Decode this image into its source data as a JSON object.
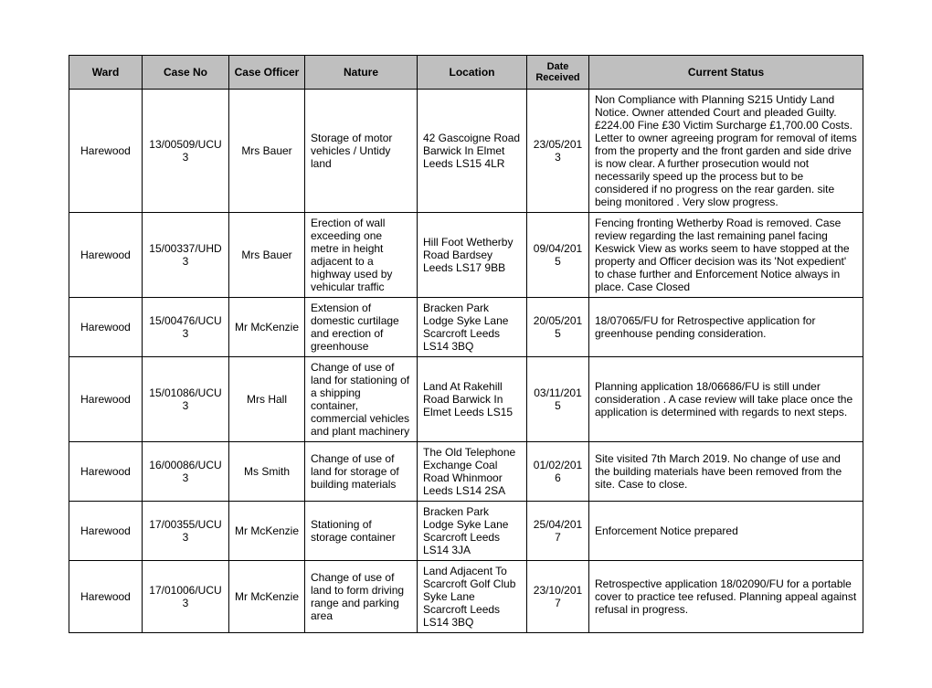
{
  "columns": [
    {
      "key": "ward",
      "label": "Ward",
      "align": "center"
    },
    {
      "key": "caseNo",
      "label": "Case No",
      "align": "center"
    },
    {
      "key": "officer",
      "label": "Case Officer",
      "align": "center"
    },
    {
      "key": "nature",
      "label": "Nature",
      "align": "left"
    },
    {
      "key": "location",
      "label": "Location",
      "align": "left"
    },
    {
      "key": "date",
      "label": "Date Received",
      "align": "center"
    },
    {
      "key": "status",
      "label": "Current Status",
      "align": "left"
    }
  ],
  "rows": [
    {
      "ward": "Harewood",
      "caseNo": "13/00509/UCU3",
      "officer": "Mrs Bauer",
      "nature": "Storage of motor vehicles / Untidy land",
      "location": "42 Gascoigne Road Barwick In Elmet Leeds LS15 4LR",
      "date": "23/05/2013",
      "status": "Non Compliance with Planning S215 Untidy Land Notice. Owner attended Court and pleaded Guilty. £224.00 Fine £30 Victim Surcharge £1,700.00 Costs. Letter to owner agreeing program for removal of items from the property and the front garden and side drive is now clear. A further prosecution would not necessarily speed up the process but to be considered if no progress on the rear garden. site being monitored . Very slow progress."
    },
    {
      "ward": "Harewood",
      "caseNo": "15/00337/UHD3",
      "officer": "Mrs Bauer",
      "nature": "Erection of wall exceeding one metre in height adjacent to a highway used by vehicular traffic",
      "location": "Hill Foot Wetherby Road Bardsey Leeds LS17 9BB",
      "date": "09/04/2015",
      "status": "Fencing fronting Wetherby Road is removed. Case review regarding the last remaining panel facing Keswick View as works seem to have stopped at the property and Officer decision was its 'Not expedient' to chase further and Enforcement Notice always in place. Case Closed"
    },
    {
      "ward": "Harewood",
      "caseNo": "15/00476/UCU3",
      "officer": "Mr McKenzie",
      "nature": "Extension of domestic curtilage and erection of greenhouse",
      "location": "Bracken Park Lodge Syke Lane Scarcroft Leeds LS14 3BQ",
      "date": "20/05/2015",
      "status": "18/07065/FU for Retrospective application for greenhouse pending consideration."
    },
    {
      "ward": "Harewood",
      "caseNo": "15/01086/UCU3",
      "officer": "Mrs Hall",
      "nature": "Change of use of land for stationing of a shipping container, commercial vehicles and plant machinery",
      "location": "Land At Rakehill Road Barwick In Elmet Leeds LS15",
      "date": "03/11/2015",
      "status": "Planning application 18/06686/FU is still under consideration . A case review will take place once the application is determined with regards to next steps."
    },
    {
      "ward": "Harewood",
      "caseNo": "16/00086/UCU3",
      "officer": "Ms Smith",
      "nature": "Change of use of land for storage of building materials",
      "location": "The Old Telephone Exchange Coal Road Whinmoor Leeds LS14 2SA",
      "date": "01/02/2016",
      "status": "Site visited 7th March 2019. No change of use and the building materials have been removed from the site.  Case to close."
    },
    {
      "ward": "Harewood",
      "caseNo": "17/00355/UCU3",
      "officer": "Mr McKenzie",
      "nature": "Stationing of storage container",
      "location": "Bracken Park Lodge Syke Lane Scarcroft Leeds LS14 3JA",
      "date": "25/04/2017",
      "status": "Enforcement Notice prepared"
    },
    {
      "ward": "Harewood",
      "caseNo": "17/01006/UCU3",
      "officer": "Mr McKenzie",
      "nature": "Change of use of land to form driving range and parking area",
      "location": "Land Adjacent To Scarcroft Golf Club Syke Lane Scarcroft Leeds LS14 3BQ",
      "date": "23/10/2017",
      "status": "Retrospective application 18/02090/FU for a portable cover to practice tee refused. Planning appeal against refusal in progress."
    }
  ]
}
